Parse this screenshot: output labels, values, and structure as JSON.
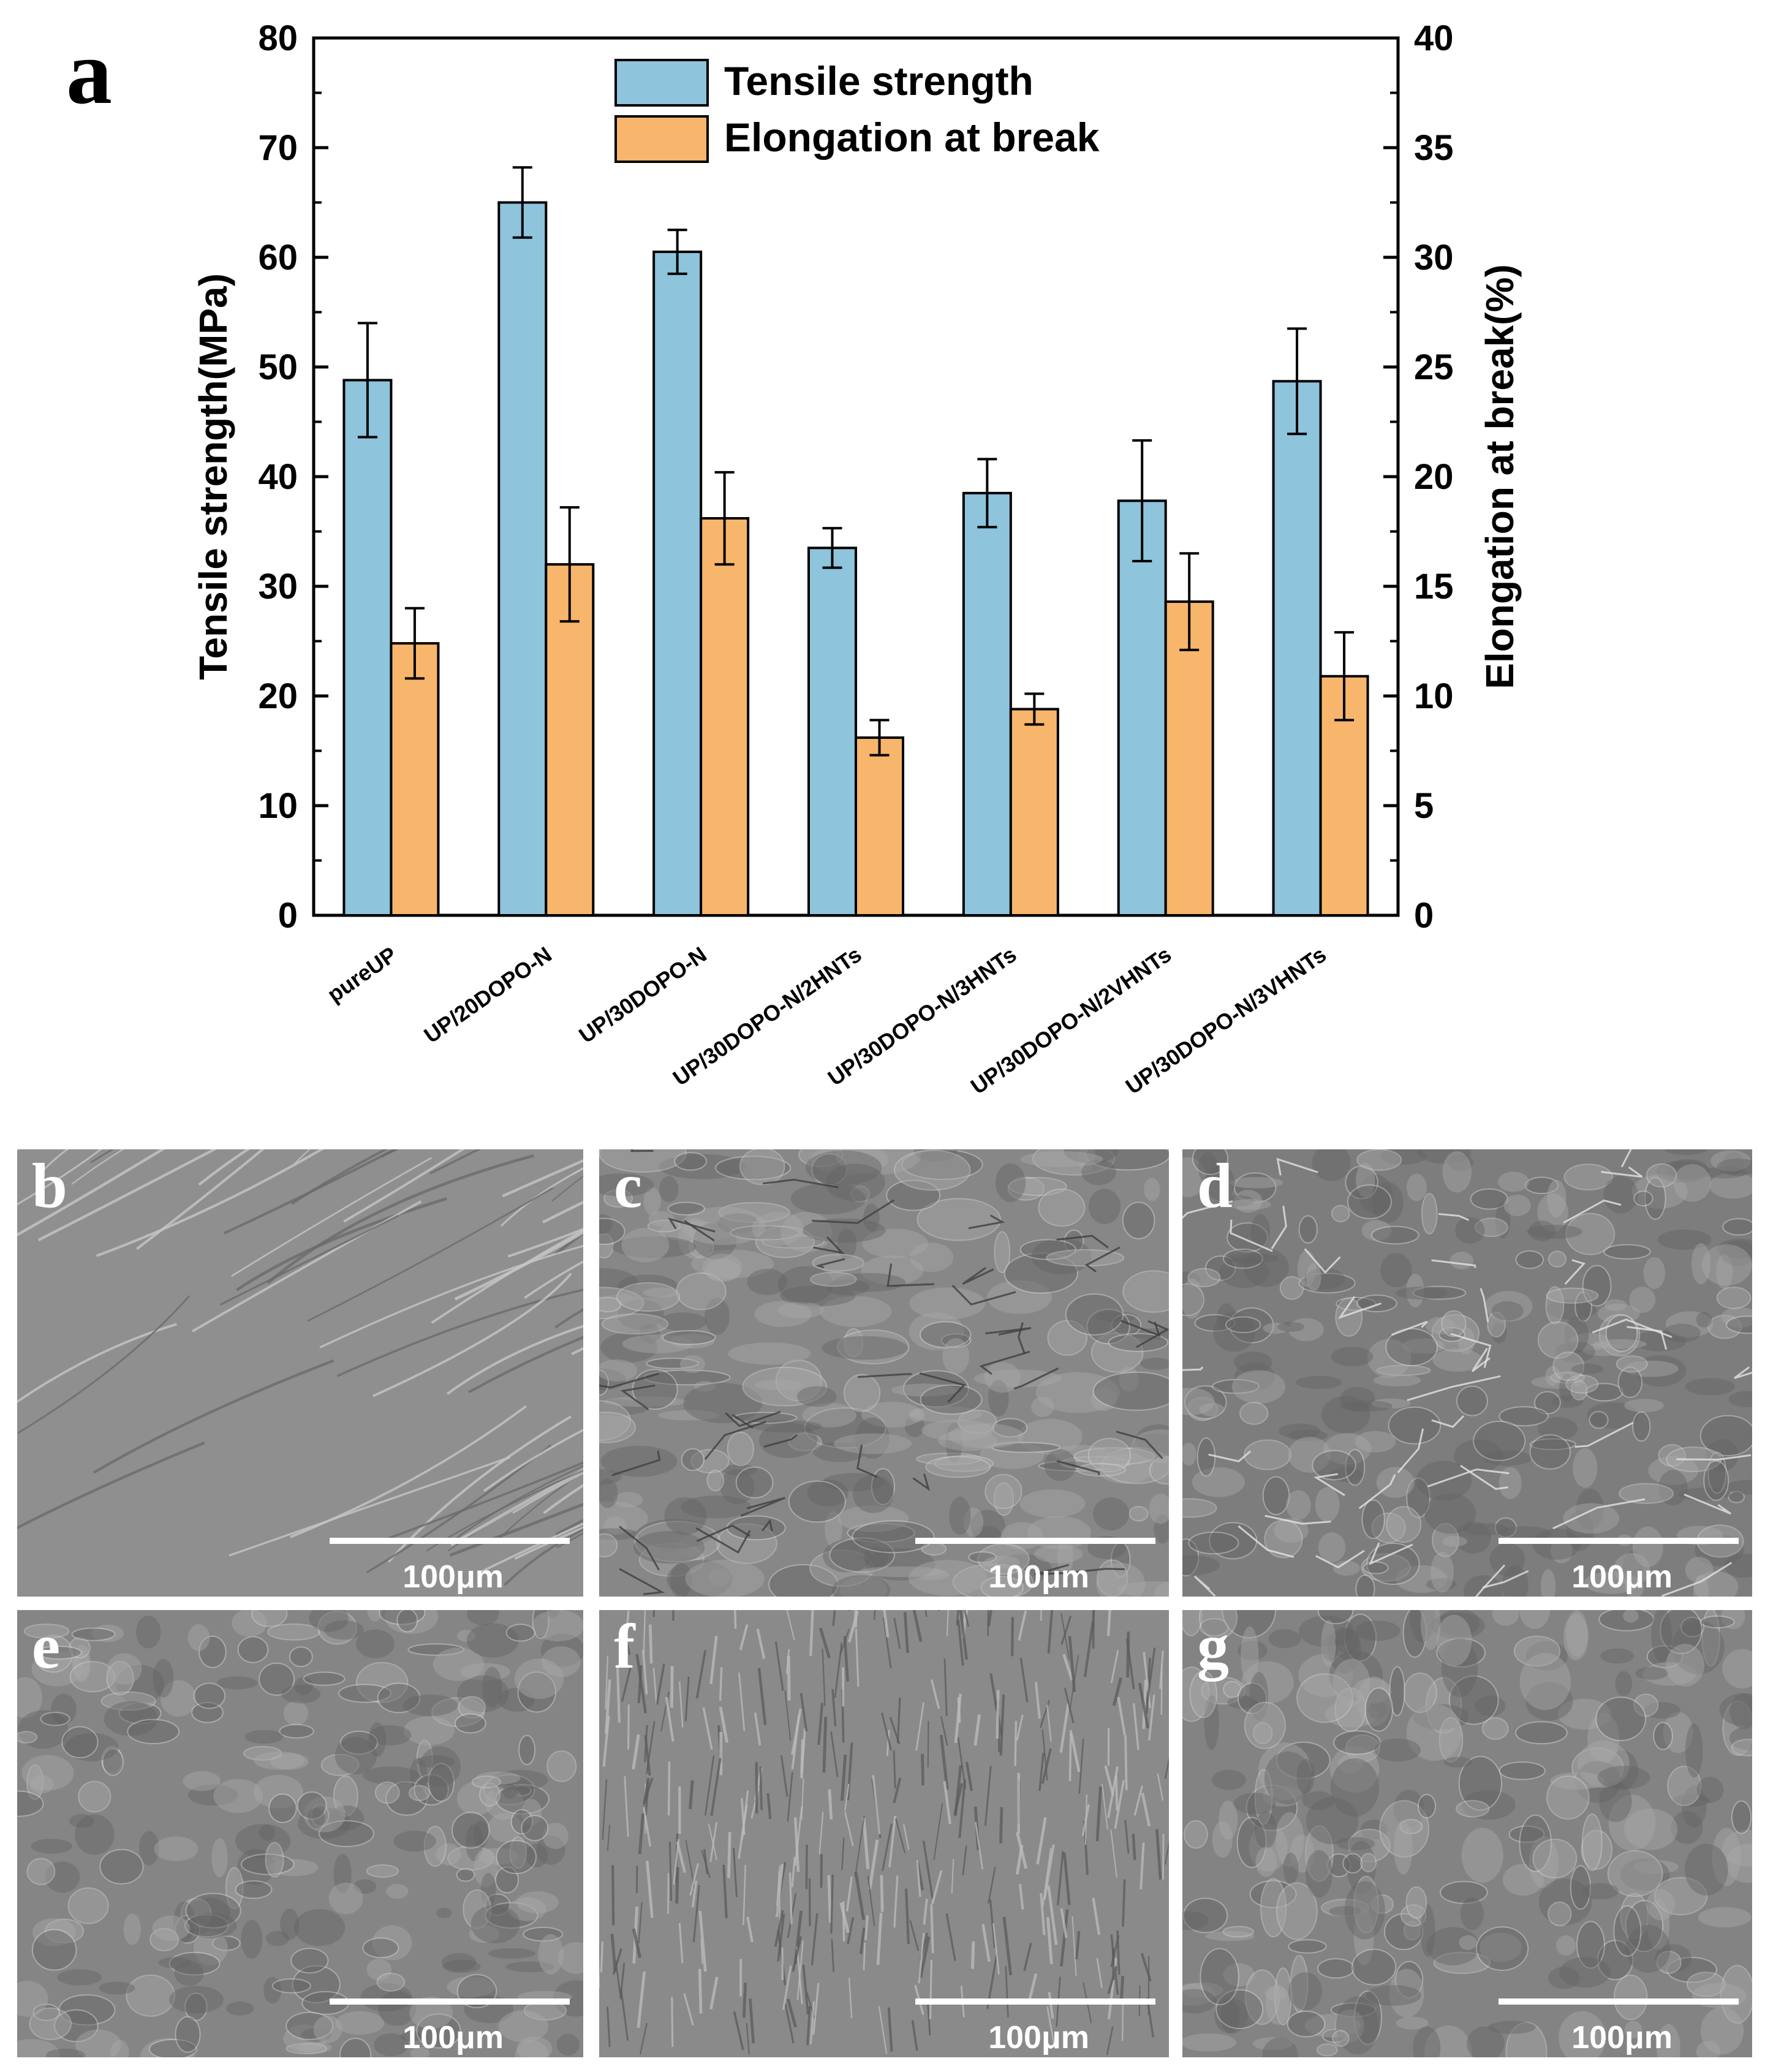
{
  "figure_label": "a",
  "chart_data": {
    "type": "bar",
    "categories": [
      "pureUP",
      "UP/20DOPO-N",
      "UP/30DOPO-N",
      "UP/30DOPO-N/2HNTs",
      "UP/30DOPO-N/3HNTs",
      "UP/30DOPO-N/2VHNTs",
      "UP/30DOPO-N/3VHNTs"
    ],
    "series": [
      {
        "name": "Tensile strength",
        "axis": "left",
        "color": "#8ec4dc",
        "values": [
          48.8,
          65.0,
          60.5,
          33.5,
          38.5,
          37.8,
          48.7
        ],
        "error": [
          5.2,
          3.2,
          2.0,
          1.8,
          3.1,
          5.5,
          4.8
        ]
      },
      {
        "name": "Elongation at break",
        "axis": "right",
        "color": "#f7b66c",
        "values": [
          12.4,
          16.0,
          18.1,
          8.1,
          9.4,
          14.3,
          10.9
        ],
        "error": [
          1.6,
          2.6,
          2.1,
          0.8,
          0.7,
          2.2,
          2.0
        ]
      }
    ],
    "ylabel": "Tensile strength(MPa)",
    "y2label": "Elongation at break(%)",
    "ylim": [
      0,
      80
    ],
    "y2lim": [
      0,
      40
    ],
    "yticks": [
      0,
      10,
      20,
      30,
      40,
      50,
      60,
      70,
      80
    ],
    "y2ticks": [
      0,
      5,
      10,
      15,
      20,
      25,
      30,
      35,
      40
    ],
    "legend_position": "top-center",
    "grid": false
  },
  "sem_panels": [
    {
      "letter": "b",
      "scale_label": "100μm",
      "texture": "smooth-river"
    },
    {
      "letter": "c",
      "scale_label": "100μm",
      "texture": "rough-flake"
    },
    {
      "letter": "d",
      "scale_label": "100μm",
      "texture": "rough-ridge"
    },
    {
      "letter": "e",
      "scale_label": "100μm",
      "texture": "rough-dense"
    },
    {
      "letter": "f",
      "scale_label": "100μm",
      "texture": "fibrous"
    },
    {
      "letter": "g",
      "scale_label": "100μm",
      "texture": "dimpled"
    }
  ]
}
